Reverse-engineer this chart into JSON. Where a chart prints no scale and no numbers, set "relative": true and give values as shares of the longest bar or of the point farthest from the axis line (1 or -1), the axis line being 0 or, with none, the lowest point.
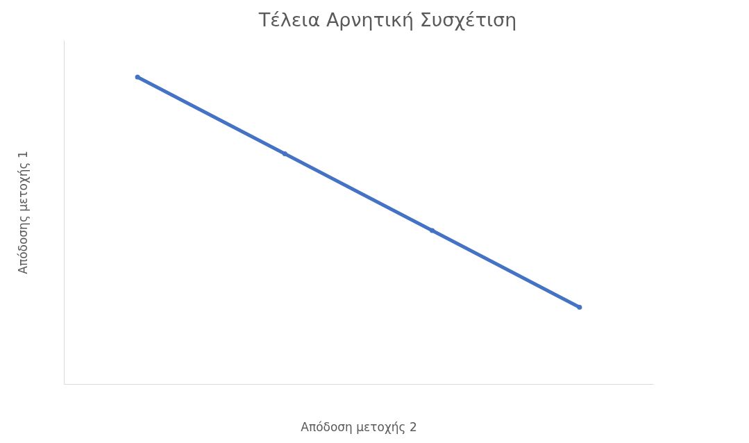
{
  "chart_data": {
    "type": "line",
    "title": "Τέλεια Αρνητική Συσχέτιση",
    "xlabel": "Απόδοση μετοχής 2",
    "ylabel": "Απόδοσης μετοχής 1",
    "categories": [
      null,
      null,
      null,
      null
    ],
    "relative": true,
    "series": [
      {
        "color": "#4472c4",
        "values": [
          1,
          0.75,
          0.5,
          0.25
        ]
      }
    ],
    "marker": "circle",
    "tick_labels": false,
    "grid": false,
    "legend": false
  }
}
